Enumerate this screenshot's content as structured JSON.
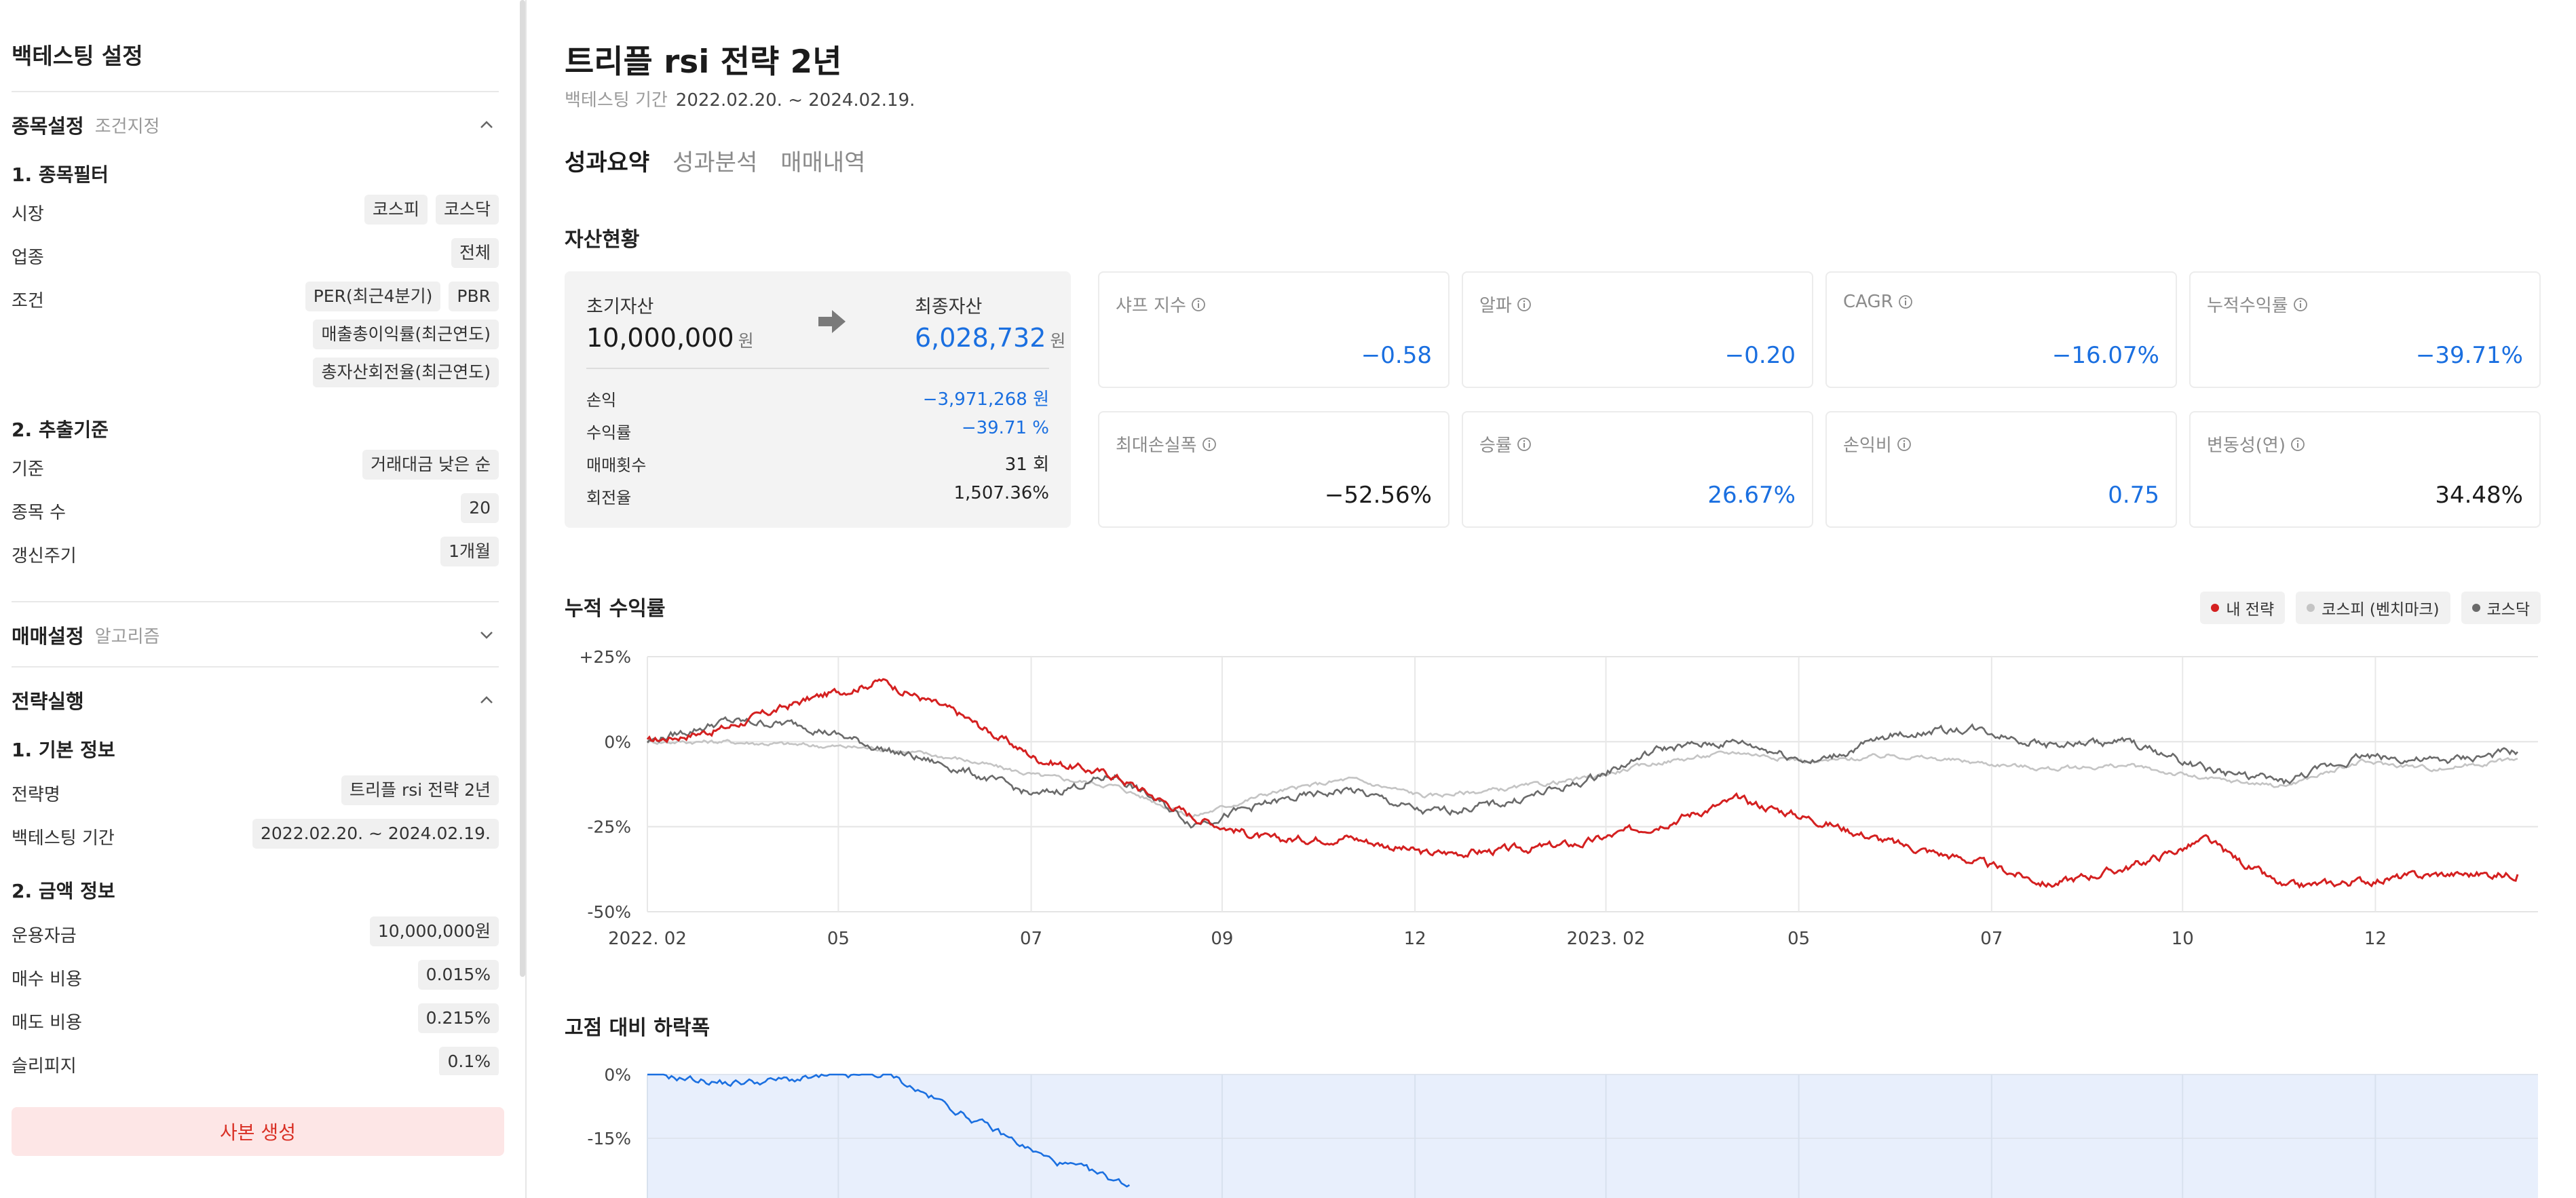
{
  "sidebar": {
    "title": "백테스팅 설정",
    "stock_section": {
      "title": "종목설정",
      "subtitle": "조건지정",
      "filter_title": "1. 종목필터",
      "market": {
        "label": "시장",
        "values": [
          "코스피",
          "코스닥"
        ]
      },
      "industry": {
        "label": "업종",
        "values": [
          "전체"
        ]
      },
      "conditions": {
        "label": "조건",
        "lines": [
          [
            "PER(최근4분기)",
            "PBR"
          ],
          [
            "매출총이익률(최근연도)"
          ],
          [
            "총자산회전율(최근연도)"
          ]
        ]
      },
      "extract_title": "2. 추출기준",
      "basis": {
        "label": "기준",
        "value": "거래대금 낮은 순"
      },
      "count": {
        "label": "종목 수",
        "value": "20"
      },
      "cycle": {
        "label": "갱신주기",
        "value": "1개월"
      }
    },
    "trade_section": {
      "title": "매매설정",
      "subtitle": "알고리즘"
    },
    "exec_section": {
      "title": "전략실행",
      "basic_title": "1. 기본 정보",
      "name": {
        "label": "전략명",
        "value": "트리플 rsi 전략 2년"
      },
      "period": {
        "label": "백테스팅 기간",
        "value": "2022.02.20. ~ 2024.02.19."
      },
      "money_title": "2. 금액 정보",
      "capital": {
        "label": "운용자금",
        "value": "10,000,000원"
      },
      "buy_fee": {
        "label": "매수 비용",
        "value": "0.015%"
      },
      "sell_fee": {
        "label": "매도 비용",
        "value": "0.215%"
      },
      "slippage": {
        "label": "슬리피지",
        "value": "0.1%"
      }
    },
    "copy_button": "사본 생성"
  },
  "header": {
    "title": "트리플 rsi 전략 2년",
    "period_label": "백테스팅 기간",
    "period_value": "2022.02.20. ~ 2024.02.19."
  },
  "tabs": [
    {
      "label": "성과요약",
      "active": true
    },
    {
      "label": "성과분석",
      "active": false
    },
    {
      "label": "매매내역",
      "active": false
    }
  ],
  "assets": {
    "section_title": "자산현황",
    "initial_label": "초기자산",
    "initial_value": "10,000,000",
    "final_label": "최종자산",
    "final_value": "6,028,732",
    "unit": "원",
    "rows": [
      {
        "label": "손익",
        "value": "−3,971,268 원",
        "blue": true
      },
      {
        "label": "수익률",
        "value": "−39.71 %",
        "blue": true
      },
      {
        "label": "매매횟수",
        "value": "31 회",
        "blue": false
      },
      {
        "label": "회전율",
        "value": "1,507.36%",
        "blue": false
      }
    ]
  },
  "metrics": [
    {
      "label": "샤프 지수",
      "value": "−0.58",
      "blue": true
    },
    {
      "label": "알파",
      "value": "−0.20",
      "blue": true
    },
    {
      "label": "CAGR",
      "value": "−16.07%",
      "blue": true
    },
    {
      "label": "누적수익률",
      "value": "−39.71%",
      "blue": true
    },
    {
      "label": "최대손실폭",
      "value": "−52.56%",
      "blue": false
    },
    {
      "label": "승률",
      "value": "26.67%",
      "blue": true
    },
    {
      "label": "손익비",
      "value": "0.75",
      "blue": true
    },
    {
      "label": "변동성(연)",
      "value": "34.48%",
      "blue": false
    }
  ],
  "colors": {
    "strategy": "#d42020",
    "kospi": "#c4c4c4",
    "kosdaq": "#6a6a6a",
    "drawdown": "#1a6fe0",
    "drawdown_fill": "#e8effc",
    "accent_blue": "#1a6fe0",
    "copy_button_text": "#d93025"
  },
  "chart_data": [
    {
      "type": "line",
      "title": "누적 수익률",
      "legend": [
        "내 전략",
        "코스피 (벤치마크)",
        "코스닥"
      ],
      "legend_placement": "top-right",
      "y_ticks": [
        "+25%",
        "0%",
        "-25%",
        "-50%"
      ],
      "x_ticks": [
        "2022. 02",
        "05",
        "07",
        "09",
        "12",
        "2023. 02",
        "05",
        "07",
        "10",
        "12"
      ],
      "ylim": [
        -50,
        25
      ],
      "grid": true,
      "x": [
        "2022-02",
        "2022-03",
        "2022-04",
        "2022-05",
        "2022-06",
        "2022-07",
        "2022-08",
        "2022-09",
        "2022-10",
        "2022-11",
        "2022-12",
        "2023-01",
        "2023-02",
        "2023-03",
        "2023-04",
        "2023-05",
        "2023-06",
        "2023-07",
        "2023-08",
        "2023-09",
        "2023-10",
        "2023-11",
        "2023-12",
        "2024-01",
        "2024-02"
      ],
      "series": [
        {
          "name": "내 전략",
          "values": [
            0,
            4,
            12,
            18,
            8,
            -5,
            -10,
            -22,
            -29,
            -28,
            -33,
            -32,
            -30,
            -24,
            -17,
            -23,
            -30,
            -35,
            -42,
            -37,
            -29,
            -43,
            -41,
            -39,
            -39
          ]
        },
        {
          "name": "코스피 (벤치마크)",
          "values": [
            0,
            0,
            -1,
            -2,
            -5,
            -10,
            -13,
            -22,
            -15,
            -11,
            -16,
            -14,
            -11,
            -6,
            -3,
            -6,
            -4,
            -6,
            -8,
            -7,
            -11,
            -13,
            -6,
            -8,
            -5
          ]
        },
        {
          "name": "코스닥",
          "values": [
            0,
            6,
            5,
            -2,
            -8,
            -16,
            -10,
            -24,
            -18,
            -14,
            -21,
            -18,
            -12,
            -2,
            0,
            -6,
            2,
            4,
            -1,
            0,
            -8,
            -12,
            -4,
            -6,
            -3
          ]
        }
      ]
    },
    {
      "type": "area",
      "title": "고점 대비 하락폭",
      "y_ticks": [
        "0%",
        "-15%"
      ],
      "ylim": [
        -30,
        0
      ],
      "x": [
        "2022-02",
        "2022-03",
        "2022-04",
        "2022-05",
        "2022-06",
        "2022-07",
        "2022-08"
      ],
      "series": [
        {
          "name": "",
          "values": [
            0,
            -2,
            -1,
            0,
            -10,
            -20,
            -26
          ]
        }
      ]
    }
  ]
}
